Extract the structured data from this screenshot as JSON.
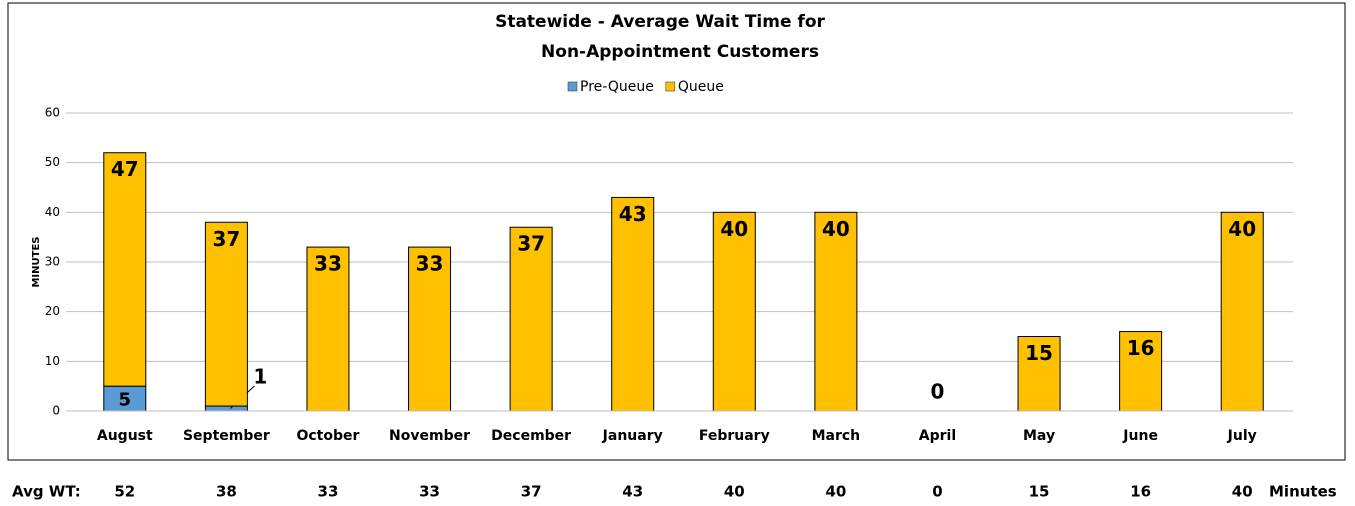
{
  "chart_data": {
    "type": "stacked_bar",
    "title": "Statewide -  Average Wait Time for",
    "subtitle": "Non-Appointment Customers",
    "y_label": "MINUTES",
    "categories": [
      "August",
      "September",
      "October",
      "November",
      "December",
      "January",
      "February",
      "March",
      "April",
      "May",
      "June",
      "July"
    ],
    "series": [
      {
        "name": "Pre-Queue",
        "color": "#5b9bd5",
        "values": [
          5,
          1,
          null,
          null,
          null,
          null,
          null,
          null,
          null,
          null,
          null,
          null
        ]
      },
      {
        "name": "Queue",
        "color": "#ffc000",
        "values": [
          47,
          37,
          33,
          33,
          37,
          43,
          40,
          40,
          0,
          15,
          16,
          40
        ]
      }
    ],
    "ylim": [
      0,
      60
    ],
    "yticks": [
      0,
      10,
      20,
      30,
      40,
      50,
      60
    ],
    "grid": true,
    "legend": "top",
    "avg_wt": {
      "label": "Avg WT:",
      "values": [
        52,
        38,
        33,
        33,
        37,
        43,
        40,
        40,
        0,
        15,
        16,
        40
      ],
      "unit": "Minutes"
    }
  }
}
